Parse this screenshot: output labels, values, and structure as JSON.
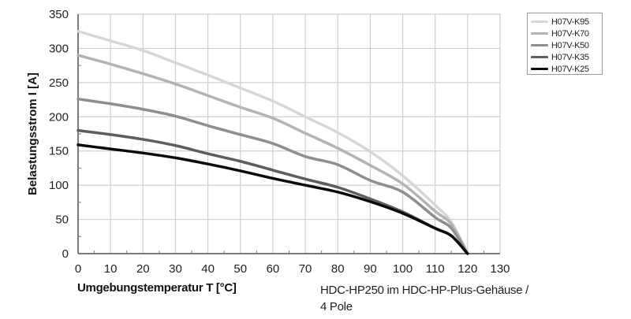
{
  "chart_data": {
    "type": "line",
    "title": "",
    "xlabel": "Umgebungstemperatur T [°C]",
    "ylabel": "Belastungsstrom I [A]",
    "caption_line1": "HDC-HP250 im HDC-HP-Plus-Gehäuse /",
    "caption_line2": "4 Pole",
    "xlim": [
      0,
      130
    ],
    "ylim": [
      0,
      350
    ],
    "x_ticks": [
      0,
      10,
      20,
      30,
      40,
      50,
      60,
      70,
      80,
      90,
      100,
      110,
      120,
      130
    ],
    "y_ticks": [
      0,
      50,
      100,
      150,
      200,
      250,
      300,
      350
    ],
    "grid": true,
    "legend_position": "top-right outside",
    "x": [
      0,
      10,
      20,
      30,
      40,
      50,
      60,
      70,
      80,
      90,
      100,
      110,
      115,
      120
    ],
    "series": [
      {
        "name": "H07V-K95",
        "color": "#d6d6d6",
        "values": [
          325,
          311,
          297,
          279,
          261,
          242,
          223,
          200,
          177,
          149,
          114,
          71,
          46,
          0
        ]
      },
      {
        "name": "H07V-K70",
        "color": "#b3b3b3",
        "values": [
          290,
          277,
          263,
          248,
          231,
          214,
          198,
          176,
          154,
          129,
          102,
          62,
          43,
          0
        ]
      },
      {
        "name": "H07V-K50",
        "color": "#8e8e8e",
        "values": [
          226,
          219,
          211,
          201,
          187,
          174,
          161,
          142,
          130,
          107,
          90,
          53,
          37,
          0
        ]
      },
      {
        "name": "H07V-K35",
        "color": "#5e5e5e",
        "values": [
          180,
          174,
          167,
          158,
          146,
          135,
          122,
          109,
          97,
          80,
          61,
          37,
          26,
          0
        ]
      },
      {
        "name": "H07V-K25",
        "color": "#0a0a0a",
        "values": [
          159,
          153,
          147,
          140,
          131,
          121,
          110,
          100,
          90,
          76,
          59,
          37,
          26,
          0
        ]
      }
    ]
  },
  "legend": {
    "items": [
      {
        "label": "H07V-K95",
        "color": "#d6d6d6"
      },
      {
        "label": "H07V-K70",
        "color": "#b3b3b3"
      },
      {
        "label": "H07V-K50",
        "color": "#8e8e8e"
      },
      {
        "label": "H07V-K35",
        "color": "#5e5e5e"
      },
      {
        "label": "H07V-K25",
        "color": "#0a0a0a"
      }
    ]
  },
  "colors": {
    "grid": "#cfcfcf",
    "axis": "#7a7a7a"
  }
}
